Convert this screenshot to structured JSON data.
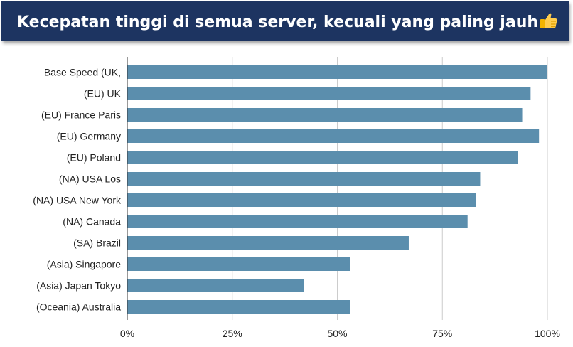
{
  "header": {
    "title": "Kecepatan tinggi di semua server, kecuali yang paling jauh",
    "emoji_icon": "thumbs-up-icon"
  },
  "colors": {
    "banner": "#1d3461",
    "bar": "#5b8ead",
    "grid": "#cccccc",
    "text": "#222222"
  },
  "chart_data": {
    "type": "bar",
    "orientation": "horizontal",
    "title": "Kecepatan tinggi di semua server, kecuali yang paling jauh",
    "categories": [
      "Base Speed (UK,",
      "(EU) UK",
      "(EU) France Paris",
      "(EU) Germany",
      "(EU) Poland",
      "(NA) USA Los",
      "(NA) USA New York",
      "(NA) Canada",
      "(SA) Brazil",
      "(Asia) Singapore",
      "(Asia) Japan Tokyo",
      "(Oceania) Australia"
    ],
    "values": [
      100,
      96,
      94,
      98,
      93,
      84,
      83,
      81,
      67,
      53,
      42,
      53
    ],
    "xlim": [
      0,
      100
    ],
    "xticks": [
      0,
      25,
      50,
      75,
      100
    ],
    "xtick_labels": [
      "0%",
      "25%",
      "50%",
      "75%",
      "100%"
    ],
    "xlabel": "",
    "ylabel": "",
    "grid": "vertical",
    "legend": "none"
  }
}
